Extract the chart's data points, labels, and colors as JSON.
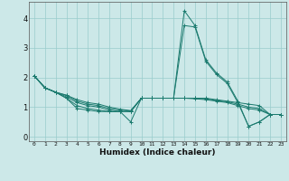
{
  "xlabel": "Humidex (Indice chaleur)",
  "bg_color": "#cce8e8",
  "grid_color": "#99cccc",
  "line_color": "#1a7a6e",
  "xlim": [
    -0.5,
    23.5
  ],
  "ylim": [
    -0.15,
    4.55
  ],
  "xticks": [
    0,
    1,
    2,
    3,
    4,
    5,
    6,
    7,
    8,
    9,
    10,
    11,
    12,
    13,
    14,
    15,
    16,
    17,
    18,
    19,
    20,
    21,
    22,
    23
  ],
  "yticks": [
    0,
    1,
    2,
    3,
    4
  ],
  "series": [
    {
      "x": [
        0,
        1,
        2,
        3,
        4,
        5,
        6,
        7,
        8,
        9,
        10,
        11,
        12,
        13,
        14,
        15,
        16,
        17,
        18,
        19,
        20,
        21,
        22,
        23
      ],
      "y": [
        2.05,
        1.65,
        1.5,
        1.3,
        0.95,
        0.9,
        0.85,
        0.85,
        0.85,
        0.5,
        1.3,
        1.3,
        1.3,
        1.3,
        4.25,
        3.75,
        2.6,
        2.15,
        1.85,
        1.2,
        0.35,
        0.5,
        0.75,
        0.75
      ]
    },
    {
      "x": [
        0,
        1,
        2,
        3,
        4,
        5,
        6,
        7,
        8,
        9,
        10,
        11,
        12,
        13,
        14,
        15,
        16,
        17,
        18,
        19,
        20,
        21,
        22,
        23
      ],
      "y": [
        2.05,
        1.65,
        1.5,
        1.3,
        1.05,
        0.95,
        0.9,
        0.85,
        0.85,
        0.85,
        1.3,
        1.3,
        1.3,
        1.3,
        3.75,
        3.7,
        2.55,
        2.1,
        1.8,
        1.15,
        0.35,
        0.5,
        0.75,
        0.75
      ]
    },
    {
      "x": [
        0,
        1,
        2,
        3,
        4,
        5,
        6,
        7,
        8,
        9,
        10,
        11,
        12,
        13,
        14,
        15,
        16,
        17,
        18,
        19,
        20,
        21,
        22,
        23
      ],
      "y": [
        2.05,
        1.65,
        1.5,
        1.35,
        1.15,
        1.05,
        1.0,
        0.9,
        0.85,
        0.85,
        1.3,
        1.3,
        1.3,
        1.3,
        1.3,
        1.3,
        1.3,
        1.25,
        1.2,
        1.15,
        1.1,
        1.05,
        0.75,
        0.75
      ]
    },
    {
      "x": [
        0,
        1,
        2,
        3,
        4,
        5,
        6,
        7,
        8,
        9,
        10,
        11,
        12,
        13,
        14,
        15,
        16,
        17,
        18,
        19,
        20,
        21,
        22,
        23
      ],
      "y": [
        2.05,
        1.65,
        1.5,
        1.4,
        1.2,
        1.1,
        1.05,
        0.95,
        0.9,
        0.87,
        1.3,
        1.3,
        1.3,
        1.3,
        1.3,
        1.3,
        1.28,
        1.22,
        1.18,
        1.1,
        1.0,
        0.95,
        0.75,
        0.75
      ]
    },
    {
      "x": [
        0,
        1,
        2,
        3,
        4,
        5,
        6,
        7,
        8,
        9,
        10,
        11,
        12,
        13,
        14,
        15,
        16,
        17,
        18,
        19,
        20,
        21,
        22,
        23
      ],
      "y": [
        2.05,
        1.65,
        1.5,
        1.4,
        1.25,
        1.15,
        1.1,
        1.0,
        0.93,
        0.88,
        1.3,
        1.3,
        1.3,
        1.3,
        1.3,
        1.28,
        1.25,
        1.2,
        1.15,
        1.05,
        0.95,
        0.9,
        0.75,
        0.75
      ]
    }
  ]
}
